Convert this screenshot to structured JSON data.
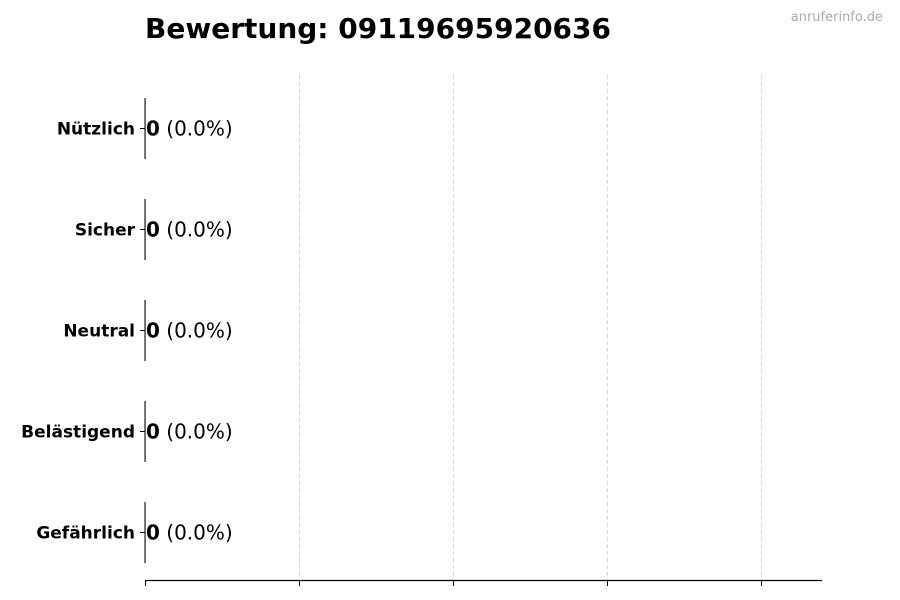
{
  "chart_data": {
    "type": "bar",
    "orientation": "horizontal",
    "title": "Bewertung: 09119695920636",
    "categories": [
      "Nützlich",
      "Sicher",
      "Neutral",
      "Belästigend",
      "Gefährlich"
    ],
    "values": [
      0,
      0,
      0,
      0,
      0
    ],
    "data_labels": [
      {
        "count": "0",
        "percent": "(0.0%)"
      },
      {
        "count": "0",
        "percent": "(0.0%)"
      },
      {
        "count": "0",
        "percent": "(0.0%)"
      },
      {
        "count": "0",
        "percent": "(0.0%)"
      },
      {
        "count": "0",
        "percent": "(0.0%)"
      }
    ],
    "xlabel": "",
    "ylabel": "",
    "grid": "x, dashed",
    "x_tick_labels": "none"
  },
  "watermark": "anruferinfo.de",
  "colors": {
    "grid": "#cccccc",
    "axis": "#000000",
    "watermark": "#aaaaaa"
  }
}
